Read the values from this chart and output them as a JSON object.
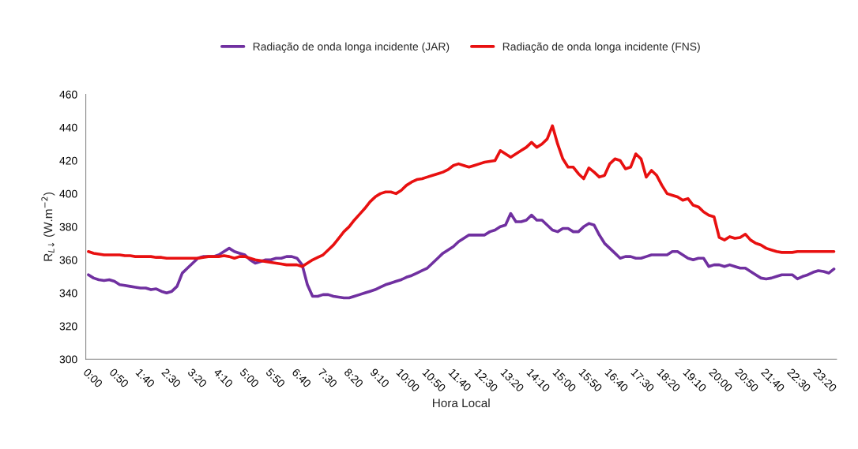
{
  "chart_data": {
    "type": "line",
    "xlabel": "Hora Local",
    "ylabel": "R$_{L↓}$ (W.m$^{−2}$)",
    "categories": [
      "0:00",
      null,
      null,
      null,
      null,
      "0:50",
      null,
      null,
      null,
      null,
      "1:40",
      null,
      null,
      null,
      null,
      "2:30",
      null,
      null,
      null,
      null,
      "3:20",
      null,
      null,
      null,
      null,
      "4:10",
      null,
      null,
      null,
      null,
      "5:00",
      null,
      null,
      null,
      null,
      "5:50",
      null,
      null,
      null,
      null,
      "6:40",
      null,
      null,
      null,
      null,
      "7:30",
      null,
      null,
      null,
      null,
      "8:20",
      null,
      null,
      null,
      null,
      "9:10",
      null,
      null,
      null,
      null,
      "10:00",
      null,
      null,
      null,
      null,
      "10:50",
      null,
      null,
      null,
      null,
      "11:40",
      null,
      null,
      null,
      null,
      "12:30",
      null,
      null,
      null,
      null,
      "13:20",
      null,
      null,
      null,
      null,
      "14:10",
      null,
      null,
      null,
      null,
      "15:00",
      null,
      null,
      null,
      null,
      "15:50",
      null,
      null,
      null,
      null,
      "16:40",
      null,
      null,
      null,
      null,
      "17:30",
      null,
      null,
      null,
      null,
      "18:20",
      null,
      null,
      null,
      null,
      "19:10",
      null,
      null,
      null,
      null,
      "20:00",
      null,
      null,
      null,
      null,
      "20:50",
      null,
      null,
      null,
      null,
      "21:40",
      null,
      null,
      null,
      null,
      "22:30",
      null,
      null,
      null,
      null,
      "23:20",
      null,
      null,
      null
    ],
    "series": [
      {
        "name": "Radiação de onda longa incidente (JAR)",
        "color": "#7030a0",
        "values": [
          351,
          349,
          348,
          347.5,
          348,
          347,
          345,
          344.5,
          344,
          343.5,
          343,
          343,
          342,
          342.5,
          341,
          340,
          341,
          344,
          352,
          355,
          358,
          361,
          362,
          362,
          362,
          363,
          365,
          367,
          365,
          364,
          363,
          360,
          358,
          359,
          360,
          360,
          361,
          361,
          362,
          362,
          361,
          357,
          345,
          338,
          338,
          339,
          339,
          338,
          337.5,
          337,
          337,
          338,
          339,
          340,
          341,
          342,
          343.5,
          345,
          346,
          347,
          348,
          349.5,
          350.5,
          352,
          353.5,
          355,
          358,
          361,
          364,
          366,
          368,
          371,
          373,
          375,
          375,
          375,
          375,
          377,
          378,
          380,
          381,
          388,
          383,
          383,
          384,
          387,
          384,
          384,
          381,
          378,
          377,
          379,
          379,
          377,
          377,
          380,
          382,
          381,
          375,
          370,
          367,
          364,
          361,
          362,
          362,
          361,
          361,
          362,
          363,
          363,
          363,
          363,
          365,
          365,
          363,
          361,
          360,
          361,
          361,
          356,
          357,
          357,
          356,
          357,
          356,
          355,
          355,
          353,
          351,
          349,
          348.5,
          349,
          350,
          351,
          351,
          351,
          348.5,
          350,
          351,
          352.5,
          353.5,
          353,
          352,
          354.5
        ]
      },
      {
        "name": "Radiação de onda longa incidente (FNS)",
        "color": "#e81010",
        "values": [
          365,
          364,
          363.5,
          363,
          363,
          363,
          363,
          362.5,
          362.5,
          362,
          362,
          362,
          362,
          361.5,
          361.5,
          361,
          361,
          361,
          361,
          361,
          361,
          361,
          361.5,
          362,
          362,
          362,
          362.5,
          362,
          361,
          362,
          362,
          361,
          360,
          359.5,
          359,
          358.5,
          358,
          357.5,
          357,
          357,
          357,
          356,
          358,
          360,
          361.5,
          363,
          366,
          369,
          373,
          377,
          380,
          384,
          387.5,
          391,
          395,
          398,
          400,
          401,
          401,
          400,
          402,
          405,
          407,
          408.5,
          409,
          410,
          411,
          412,
          413,
          414.5,
          417,
          418,
          417,
          416,
          417,
          418,
          419,
          419.5,
          420,
          426,
          424,
          422,
          424,
          426,
          428,
          431,
          428,
          430,
          433,
          441,
          430,
          421,
          416,
          416,
          412,
          409,
          415.5,
          413,
          410,
          411,
          418,
          421,
          420,
          415,
          416,
          424,
          421,
          410,
          414,
          411,
          405,
          400,
          399,
          398,
          396,
          397,
          393,
          392,
          389,
          387,
          386,
          373.5,
          372,
          374,
          373,
          373.5,
          375.5,
          372,
          370,
          369,
          367,
          366,
          365,
          364.5,
          364.5,
          364.5,
          365,
          365,
          365,
          365,
          365,
          365,
          365,
          365
        ]
      }
    ],
    "ylim": [
      300,
      460
    ],
    "yticks": [
      300,
      320,
      340,
      360,
      380,
      400,
      420,
      440,
      460
    ],
    "grid": false,
    "legend": "top",
    "marker": "none",
    "line_style": "solid"
  }
}
